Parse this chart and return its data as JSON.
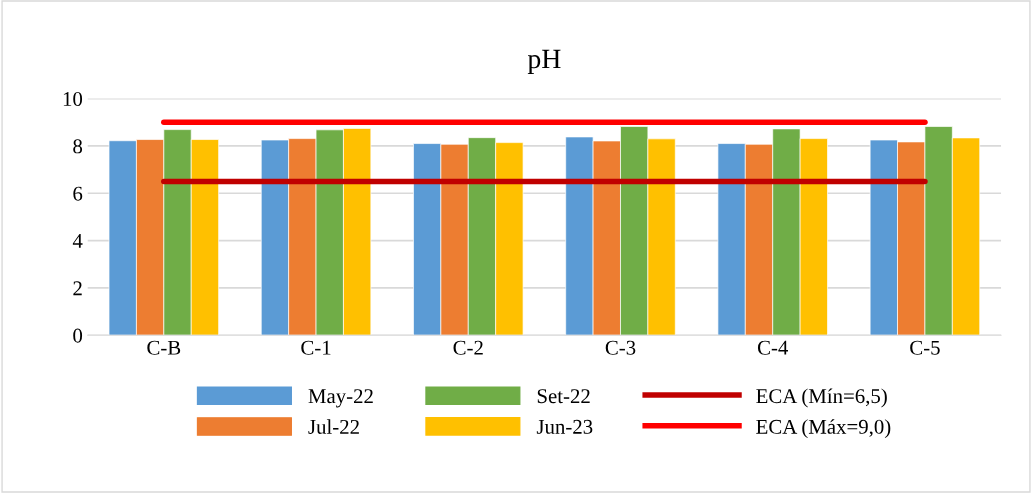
{
  "chart_data": {
    "type": "bar",
    "title": "pH",
    "categories": [
      "C-B",
      "C-1",
      "C-2",
      "C-3",
      "C-4",
      "C-5"
    ],
    "series": [
      {
        "name": "May-22",
        "color": "#5b9bd5",
        "values": [
          8.22,
          8.25,
          8.1,
          8.38,
          8.1,
          8.25
        ]
      },
      {
        "name": "Jul-22",
        "color": "#ed7d31",
        "values": [
          8.27,
          8.31,
          8.07,
          8.21,
          8.07,
          8.17
        ]
      },
      {
        "name": "Set-22",
        "color": "#70ad47",
        "values": [
          8.69,
          8.68,
          8.35,
          8.82,
          8.72,
          8.82
        ]
      },
      {
        "name": "Jun-23",
        "color": "#ffc000",
        "values": [
          8.27,
          8.74,
          8.14,
          8.3,
          8.31,
          8.34
        ]
      },
      {
        "name": "ECA (Mín=6,5)",
        "color": "#c00000",
        "type": "line",
        "values": [
          6.5,
          6.5,
          6.5,
          6.5,
          6.5,
          6.5
        ]
      },
      {
        "name": "ECA (Máx=9,0)",
        "color": "#ff0000",
        "type": "line",
        "values": [
          9.0,
          9.0,
          9.0,
          9.0,
          9.0,
          9.0
        ]
      }
    ],
    "ylim": [
      0,
      10
    ],
    "yticks": [
      0,
      2,
      4,
      6,
      8,
      10
    ],
    "grid": "y",
    "legend": "bottom",
    "marker": "none",
    "line_style": "solid"
  }
}
